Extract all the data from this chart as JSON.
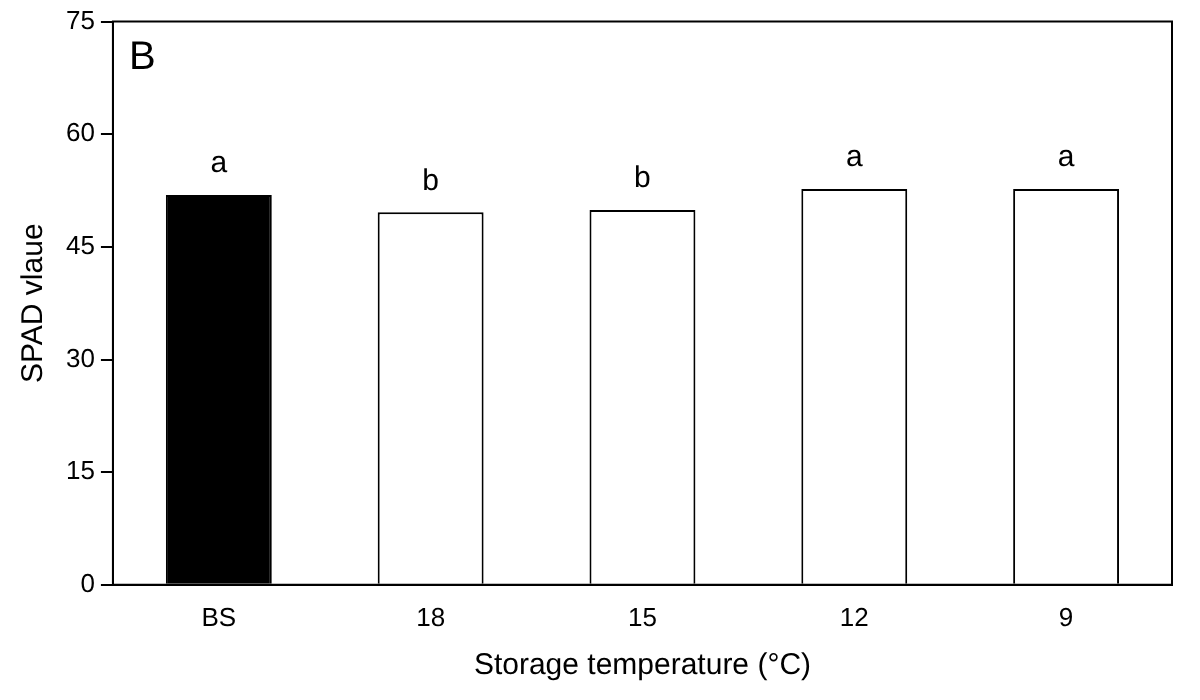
{
  "chart_data": {
    "type": "bar",
    "categories": [
      "BS",
      "18",
      "15",
      "12",
      "9"
    ],
    "values": [
      51.9,
      49.6,
      49.9,
      52.7,
      52.7
    ],
    "colors": [
      "#000000",
      "#ffffff",
      "#ffffff",
      "#ffffff",
      "#ffffff"
    ],
    "xlabel": "Storage temperature (°C)",
    "ylabel": "SPAD vlaue",
    "ylim": [
      0,
      75
    ],
    "yticks": [
      0,
      15,
      30,
      45,
      60,
      75
    ],
    "grid": false,
    "legend": false,
    "annotations": [
      "B",
      {
        "text": "a",
        "x": "BS",
        "y": 51.9
      },
      {
        "text": "b",
        "x": "18",
        "y": 49.6
      },
      {
        "text": "b",
        "x": "15",
        "y": 49.9
      },
      {
        "text": "a",
        "x": "12",
        "y": 52.7
      },
      {
        "text": "a",
        "x": "9",
        "y": 52.7
      }
    ]
  }
}
